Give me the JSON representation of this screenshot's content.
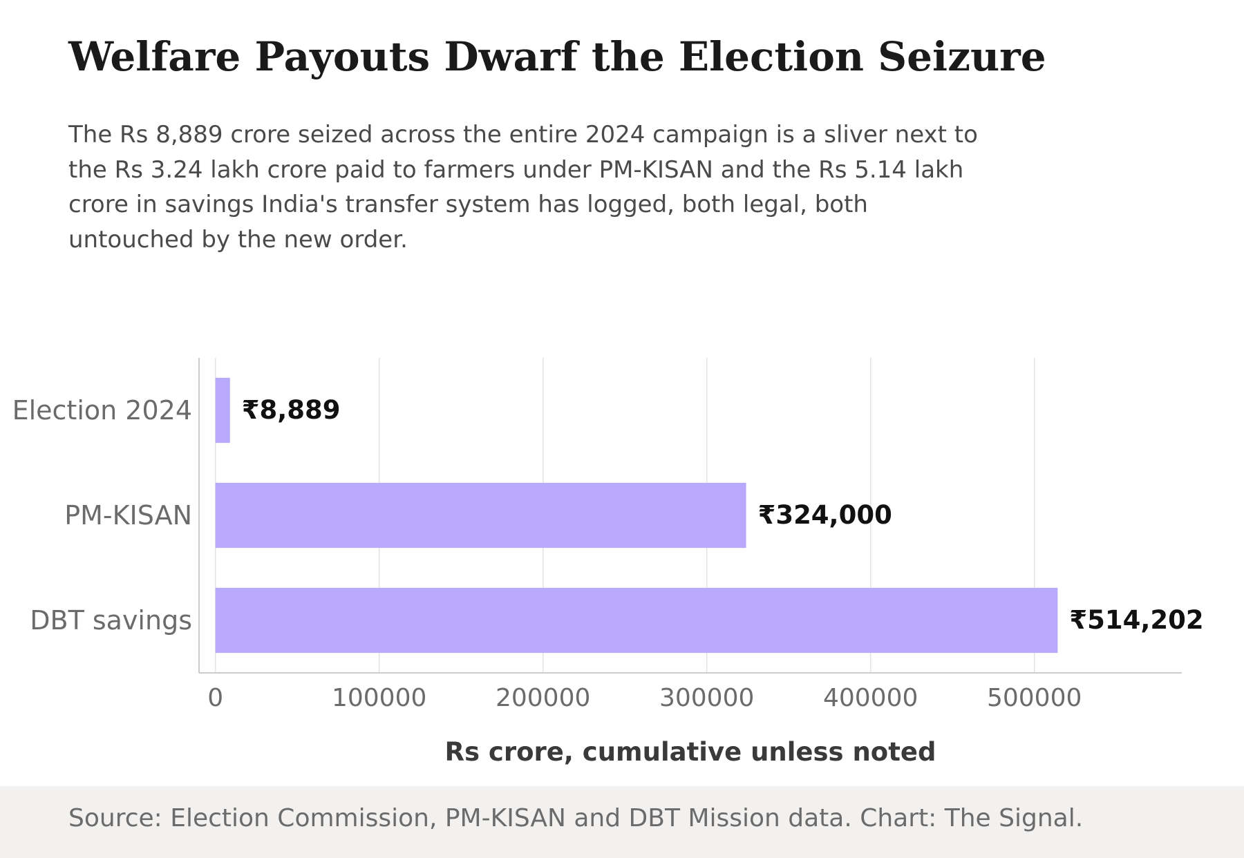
{
  "title": "Welfare Payouts Dwarf the Election Seizure",
  "subtitle": "The Rs 8,889 crore seized across the entire 2024 campaign is a sliver next to the Rs 3.24 lakh crore paid to farmers under PM-KISAN and the Rs 5.14 lakh crore in savings India's transfer system has logged, both legal, both untouched by the new order.",
  "source": "Source: Election Commission, PM-KISAN and DBT Mission data. Chart: The Signal.",
  "colors": {
    "bar": "#b8a9fc",
    "grid": "#e3e3e3",
    "axis": "#cccccc",
    "tick_text": "#6b6b6b",
    "value_text": "#111111",
    "footer_bg": "#f2f1ef"
  },
  "chart_data": {
    "type": "bar",
    "orientation": "horizontal",
    "categories": [
      "Election 2024",
      "PM-KISAN",
      "DBT savings"
    ],
    "values": [
      8889,
      324000,
      514202
    ],
    "value_labels": [
      "₹8,889",
      "₹324,000",
      "₹514,202"
    ],
    "xlabel": "Rs crore, cumulative unless noted",
    "ylabel": "",
    "xlim": [
      -10000,
      590000
    ],
    "xticks": [
      0,
      100000,
      200000,
      300000,
      400000,
      500000
    ],
    "xtick_labels": [
      "0",
      "100000",
      "200000",
      "300000",
      "400000",
      "500000"
    ],
    "grid": "vertical"
  }
}
